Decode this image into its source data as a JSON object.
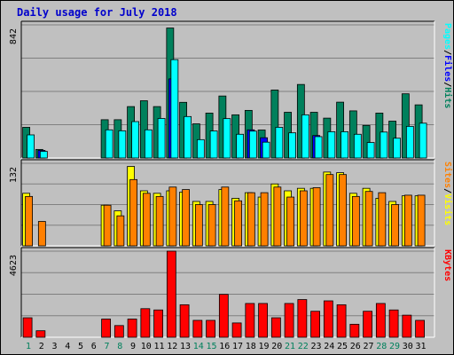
{
  "title": "Daily usage for July 2018",
  "colors": {
    "hits": "#00805c",
    "files": "#0000ff",
    "pages": "#00ffff",
    "visits": "#ffff00",
    "sites": "#ff8000",
    "kbytes": "#ff0000",
    "weekend": "#00805c",
    "weekday": "#000000"
  },
  "chart_data": [
    {
      "type": "bar",
      "name": "hits-files-pages",
      "y_max_label": "842",
      "ylim": [
        0,
        842
      ],
      "legend": [
        {
          "label": "Pages",
          "color_key": "pages"
        },
        {
          "label": "Files",
          "color_key": "files"
        },
        {
          "label": "Hits",
          "color_key": "hits"
        }
      ],
      "series_keys": [
        "hits",
        "files",
        "pages"
      ],
      "x": [
        1,
        2,
        3,
        4,
        5,
        6,
        7,
        8,
        9,
        10,
        11,
        12,
        13,
        14,
        15,
        16,
        17,
        18,
        19,
        20,
        21,
        22,
        23,
        24,
        25,
        26,
        27,
        28,
        29,
        30,
        31
      ],
      "hits": [
        194,
        54,
        0,
        0,
        0,
        0,
        242,
        242,
        325,
        362,
        325,
        822,
        352,
        216,
        284,
        392,
        273,
        301,
        177,
        430,
        289,
        465,
        289,
        252,
        353,
        298,
        206,
        284,
        233,
        406,
        336
      ],
      "files": [
        0,
        48,
        0,
        0,
        0,
        0,
        0,
        0,
        0,
        0,
        0,
        500,
        0,
        0,
        0,
        0,
        0,
        178,
        128,
        0,
        0,
        0,
        142,
        0,
        0,
        0,
        0,
        0,
        0,
        0,
        0
      ],
      "pages": [
        146,
        42,
        0,
        0,
        0,
        0,
        178,
        172,
        230,
        178,
        250,
        622,
        262,
        116,
        171,
        249,
        150,
        170,
        100,
        194,
        159,
        273,
        135,
        166,
        166,
        150,
        98,
        164,
        125,
        200,
        220
      ]
    },
    {
      "type": "bar",
      "name": "visits-sites",
      "y_max_label": "132",
      "ylim": [
        0,
        132
      ],
      "legend": [
        {
          "label": "Sites",
          "color_key": "sites"
        },
        {
          "label": "Visits",
          "color_key": "visits"
        }
      ],
      "series_keys": [
        "visits",
        "sites"
      ],
      "x": [
        1,
        2,
        3,
        4,
        5,
        6,
        7,
        8,
        9,
        10,
        11,
        12,
        13,
        14,
        15,
        16,
        17,
        18,
        19,
        20,
        21,
        22,
        23,
        24,
        25,
        26,
        27,
        28,
        29,
        30,
        31
      ],
      "visits": [
        84,
        0,
        0,
        0,
        0,
        0,
        65,
        56,
        127,
        88,
        84,
        88,
        86,
        71,
        71,
        90,
        76,
        85,
        78,
        99,
        88,
        92,
        92,
        118,
        117,
        84,
        92,
        76,
        71,
        80,
        80
      ],
      "sites": [
        79,
        39,
        0,
        0,
        0,
        0,
        65,
        48,
        106,
        84,
        79,
        94,
        90,
        66,
        66,
        94,
        72,
        85,
        85,
        94,
        78,
        88,
        93,
        114,
        114,
        79,
        87,
        85,
        66,
        81,
        81
      ]
    },
    {
      "type": "bar",
      "name": "kbytes",
      "y_max_label": "4623",
      "ylim": [
        0,
        4623
      ],
      "legend": [
        {
          "label": "KBytes",
          "color_key": "kbytes"
        }
      ],
      "series_keys": [
        "kbytes"
      ],
      "x": [
        1,
        2,
        3,
        4,
        5,
        6,
        7,
        8,
        9,
        10,
        11,
        12,
        13,
        14,
        15,
        16,
        17,
        18,
        19,
        20,
        21,
        22,
        23,
        24,
        25,
        26,
        27,
        28,
        29,
        30,
        31
      ],
      "kbytes": [
        1046,
        349,
        0,
        0,
        0,
        0,
        977,
        628,
        977,
        1535,
        1466,
        4623,
        1745,
        907,
        907,
        2303,
        768,
        1814,
        1814,
        1046,
        1814,
        2024,
        1395,
        1954,
        1745,
        698,
        1396,
        1814,
        1466,
        1186,
        907
      ]
    }
  ],
  "days": [
    {
      "label": "1",
      "weekend": true
    },
    {
      "label": "2",
      "weekend": false
    },
    {
      "label": "3",
      "weekend": false
    },
    {
      "label": "4",
      "weekend": false
    },
    {
      "label": "5",
      "weekend": false
    },
    {
      "label": "6",
      "weekend": false
    },
    {
      "label": "7",
      "weekend": true
    },
    {
      "label": "8",
      "weekend": true
    },
    {
      "label": "9",
      "weekend": false
    },
    {
      "label": "10",
      "weekend": false
    },
    {
      "label": "11",
      "weekend": false
    },
    {
      "label": "12",
      "weekend": false
    },
    {
      "label": "13",
      "weekend": false
    },
    {
      "label": "14",
      "weekend": true
    },
    {
      "label": "15",
      "weekend": true
    },
    {
      "label": "16",
      "weekend": false
    },
    {
      "label": "17",
      "weekend": false
    },
    {
      "label": "18",
      "weekend": false
    },
    {
      "label": "19",
      "weekend": false
    },
    {
      "label": "20",
      "weekend": false
    },
    {
      "label": "21",
      "weekend": true
    },
    {
      "label": "22",
      "weekend": true
    },
    {
      "label": "23",
      "weekend": false
    },
    {
      "label": "24",
      "weekend": false
    },
    {
      "label": "25",
      "weekend": false
    },
    {
      "label": "26",
      "weekend": false
    },
    {
      "label": "27",
      "weekend": false
    },
    {
      "label": "28",
      "weekend": true
    },
    {
      "label": "29",
      "weekend": true
    },
    {
      "label": "30",
      "weekend": false
    },
    {
      "label": "31",
      "weekend": false
    }
  ]
}
